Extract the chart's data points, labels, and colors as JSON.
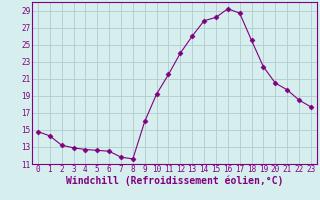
{
  "x": [
    0,
    1,
    2,
    3,
    4,
    5,
    6,
    7,
    8,
    9,
    10,
    11,
    12,
    13,
    14,
    15,
    16,
    17,
    18,
    19,
    20,
    21,
    22,
    23
  ],
  "y": [
    14.8,
    14.3,
    13.2,
    12.9,
    12.7,
    12.6,
    12.5,
    11.8,
    11.6,
    16.0,
    19.2,
    21.5,
    24.0,
    26.0,
    27.8,
    28.2,
    29.2,
    28.7,
    25.5,
    22.4,
    20.5,
    19.7,
    18.5,
    17.7
  ],
  "line_color": "#800080",
  "marker": "D",
  "marker_size": 2.5,
  "bg_color": "#d6eeee",
  "grid_color": "#b0cccc",
  "xlabel": "Windchill (Refroidissement éolien,°C)",
  "ylabel": "",
  "xlim_min": -0.5,
  "xlim_max": 23.5,
  "ylim_min": 11,
  "ylim_max": 30,
  "yticks": [
    11,
    13,
    15,
    17,
    19,
    21,
    23,
    25,
    27,
    29
  ],
  "xticks": [
    0,
    1,
    2,
    3,
    4,
    5,
    6,
    7,
    8,
    9,
    10,
    11,
    12,
    13,
    14,
    15,
    16,
    17,
    18,
    19,
    20,
    21,
    22,
    23
  ],
  "tick_fontsize": 5.5,
  "xlabel_fontsize": 7,
  "tick_color": "#800080",
  "axis_color": "#800080",
  "spine_color": "#800080"
}
